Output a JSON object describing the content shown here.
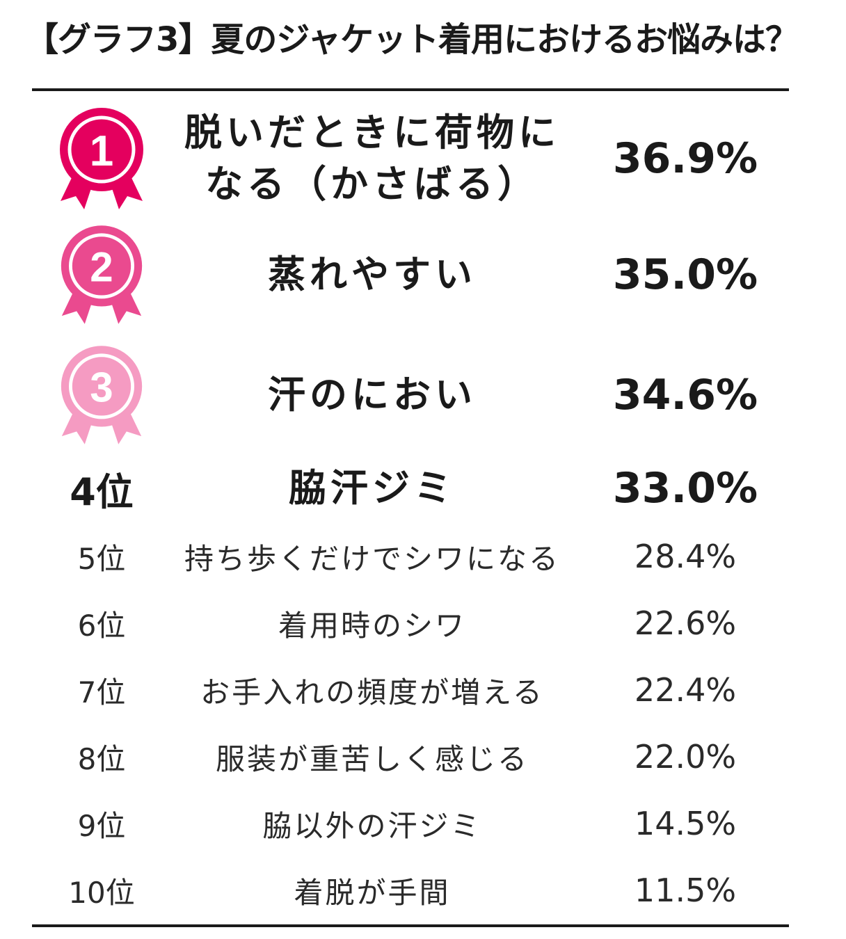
{
  "title": "【グラフ3】夏のジャケット着用におけるお悩みは？",
  "colors": {
    "medal_1": "#e4005e",
    "medal_2": "#ea4a8f",
    "medal_3": "#f59bc2",
    "text": "#1a1a1a"
  },
  "ranking": [
    {
      "rank_icon": "medal-1-icon",
      "label": "脱いだときに荷物になる（かさばる）",
      "label_lines": [
        "脱いだときに荷物に",
        "なる（かさばる）"
      ],
      "value": "36.9%"
    },
    {
      "rank_icon": "medal-2-icon",
      "label": "蒸れやすい",
      "value": "35.0%"
    },
    {
      "rank_icon": "medal-3-icon",
      "label": "汗のにおい",
      "value": "34.6%"
    },
    {
      "rank": "4位",
      "label": "脇汗ジミ",
      "value": "33.0%"
    },
    {
      "rank": "5位",
      "label": "持ち歩くだけでシワになる",
      "value": "28.4%"
    },
    {
      "rank": "6位",
      "label": "着用時のシワ",
      "value": "22.6%"
    },
    {
      "rank": "7位",
      "label": "お手入れの頻度が増える",
      "value": "22.4%"
    },
    {
      "rank": "8位",
      "label": "服装が重苦しく感じる",
      "value": "22.0%"
    },
    {
      "rank": "9位",
      "label": "脇以外の汗ジミ",
      "value": "14.5%"
    },
    {
      "rank": "10位",
      "label": "着脱が手間",
      "value": "11.5%"
    }
  ],
  "chart_data": {
    "type": "table",
    "title": "【グラフ3】夏のジャケット着用におけるお悩みは？",
    "categories": [
      "脱いだときに荷物になる（かさばる）",
      "蒸れやすい",
      "汗のにおい",
      "脇汗ジミ",
      "持ち歩くだけでシワになる",
      "着用時のシワ",
      "お手入れの頻度が増える",
      "服装が重苦しく感じる",
      "脇以外の汗ジミ",
      "着脱が手間"
    ],
    "values": [
      36.9,
      35.0,
      34.6,
      33.0,
      28.4,
      22.6,
      22.4,
      22.0,
      14.5,
      11.5
    ],
    "unit": "%"
  }
}
